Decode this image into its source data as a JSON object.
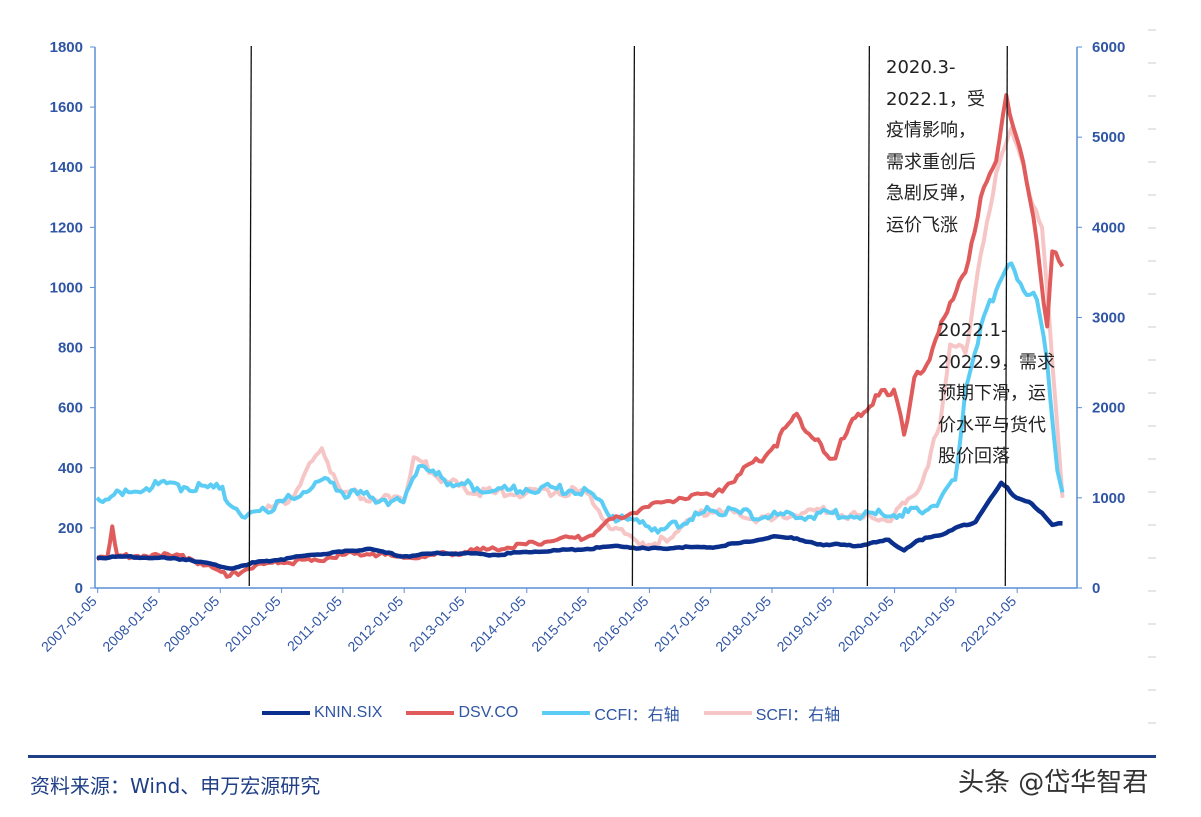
{
  "chart_data": {
    "type": "line",
    "xlabel": "",
    "ylabel": "",
    "x_ticks": [
      "2007-01-05",
      "2008-01-05",
      "2009-01-05",
      "2010-01-05",
      "2011-01-05",
      "2012-01-05",
      "2013-01-05",
      "2014-01-05",
      "2015-01-05",
      "2016-01-05",
      "2017-01-05",
      "2018-01-05",
      "2019-01-05",
      "2020-01-05",
      "2021-01-05",
      "2022-01-05"
    ],
    "y_left": {
      "ylim": [
        0,
        1800
      ],
      "ticks": [
        "0",
        "200",
        "400",
        "600",
        "800",
        "1000",
        "1200",
        "1400",
        "1600",
        "1800"
      ]
    },
    "y_right": {
      "ylim": [
        0,
        6000
      ],
      "ticks": [
        "0",
        "1000",
        "2000",
        "3000",
        "4000",
        "5000",
        "6000"
      ]
    },
    "grid": false,
    "legend": "bottom",
    "series": [
      {
        "name": "KNIN.SIX",
        "axis": "left",
        "color": "#0a2f8c",
        "points": [
          [
            "2007-01",
            100
          ],
          [
            "2007-07",
            105
          ],
          [
            "2008-01",
            100
          ],
          [
            "2008-07",
            95
          ],
          [
            "2009-03",
            65
          ],
          [
            "2009-08",
            85
          ],
          [
            "2010-01",
            95
          ],
          [
            "2010-07",
            110
          ],
          [
            "2011-01",
            120
          ],
          [
            "2011-06",
            130
          ],
          [
            "2012-01",
            105
          ],
          [
            "2012-07",
            115
          ],
          [
            "2013-01",
            115
          ],
          [
            "2013-07",
            110
          ],
          [
            "2014-01",
            120
          ],
          [
            "2014-07",
            125
          ],
          [
            "2015-01",
            130
          ],
          [
            "2015-07",
            140
          ],
          [
            "2016-01",
            130
          ],
          [
            "2016-07",
            135
          ],
          [
            "2017-01",
            135
          ],
          [
            "2017-07",
            150
          ],
          [
            "2018-01",
            170
          ],
          [
            "2018-06",
            165
          ],
          [
            "2018-10",
            145
          ],
          [
            "2019-01",
            145
          ],
          [
            "2019-06",
            140
          ],
          [
            "2019-12",
            160
          ],
          [
            "2020-03",
            125
          ],
          [
            "2020-06",
            160
          ],
          [
            "2020-10",
            175
          ],
          [
            "2021-01",
            200
          ],
          [
            "2021-05",
            220
          ],
          [
            "2021-08",
            300
          ],
          [
            "2021-10",
            350
          ],
          [
            "2022-01",
            300
          ],
          [
            "2022-04",
            280
          ],
          [
            "2022-06",
            250
          ],
          [
            "2022-08",
            210
          ],
          [
            "2022-10",
            215
          ]
        ]
      },
      {
        "name": "DSV.CO",
        "axis": "left",
        "color": "#e05c5c",
        "points": [
          [
            "2007-01",
            95
          ],
          [
            "2007-03",
            100
          ],
          [
            "2007-04",
            205
          ],
          [
            "2007-05",
            105
          ],
          [
            "2008-01",
            110
          ],
          [
            "2008-07",
            100
          ],
          [
            "2009-03",
            40
          ],
          [
            "2009-08",
            75
          ],
          [
            "2010-01",
            85
          ],
          [
            "2010-07",
            90
          ],
          [
            "2011-01",
            110
          ],
          [
            "2011-07",
            115
          ],
          [
            "2012-01",
            100
          ],
          [
            "2012-07",
            110
          ],
          [
            "2013-01",
            120
          ],
          [
            "2013-07",
            130
          ],
          [
            "2014-01",
            145
          ],
          [
            "2014-07",
            160
          ],
          [
            "2015-01",
            170
          ],
          [
            "2015-06",
            230
          ],
          [
            "2016-01",
            270
          ],
          [
            "2016-07",
            300
          ],
          [
            "2017-01",
            310
          ],
          [
            "2017-07",
            380
          ],
          [
            "2018-01",
            460
          ],
          [
            "2018-06",
            580
          ],
          [
            "2018-09",
            500
          ],
          [
            "2019-01",
            430
          ],
          [
            "2019-06",
            580
          ],
          [
            "2019-10",
            640
          ],
          [
            "2020-01",
            660
          ],
          [
            "2020-03",
            510
          ],
          [
            "2020-05",
            700
          ],
          [
            "2020-08",
            760
          ],
          [
            "2020-12",
            950
          ],
          [
            "2021-03",
            1050
          ],
          [
            "2021-06",
            1300
          ],
          [
            "2021-09",
            1420
          ],
          [
            "2021-11",
            1640
          ],
          [
            "2022-01",
            1500
          ],
          [
            "2022-03",
            1350
          ],
          [
            "2022-05",
            1150
          ],
          [
            "2022-07",
            870
          ],
          [
            "2022-08",
            1120
          ],
          [
            "2022-10",
            1070
          ]
        ]
      },
      {
        "name": "CCFI：右轴",
        "axis": "right",
        "color": "#5bcdf5",
        "points": [
          [
            "2007-01",
            1000
          ],
          [
            "2007-06",
            1030
          ],
          [
            "2008-01",
            1150
          ],
          [
            "2008-06",
            1120
          ],
          [
            "2009-01",
            1100
          ],
          [
            "2009-06",
            780
          ],
          [
            "2009-10",
            860
          ],
          [
            "2010-03",
            1000
          ],
          [
            "2010-09",
            1200
          ],
          [
            "2011-01",
            1060
          ],
          [
            "2011-07",
            1000
          ],
          [
            "2012-01",
            950
          ],
          [
            "2012-04",
            1350
          ],
          [
            "2012-09",
            1200
          ],
          [
            "2013-01",
            1150
          ],
          [
            "2013-07",
            1080
          ],
          [
            "2014-01",
            1100
          ],
          [
            "2014-07",
            1100
          ],
          [
            "2015-01",
            1080
          ],
          [
            "2015-06",
            800
          ],
          [
            "2016-01",
            680
          ],
          [
            "2016-04",
            650
          ],
          [
            "2016-09",
            760
          ],
          [
            "2017-01",
            860
          ],
          [
            "2017-07",
            830
          ],
          [
            "2018-01",
            800
          ],
          [
            "2018-07",
            780
          ],
          [
            "2019-01",
            830
          ],
          [
            "2019-07",
            810
          ],
          [
            "2020-01",
            810
          ],
          [
            "2020-06",
            850
          ],
          [
            "2020-10",
            980
          ],
          [
            "2021-01",
            1200
          ],
          [
            "2021-03",
            2200
          ],
          [
            "2021-06",
            2900
          ],
          [
            "2021-09",
            3300
          ],
          [
            "2021-12",
            3600
          ],
          [
            "2022-03",
            3250
          ],
          [
            "2022-05",
            3200
          ],
          [
            "2022-07",
            2500
          ],
          [
            "2022-09",
            1300
          ],
          [
            "2022-10",
            1060
          ]
        ]
      },
      {
        "name": "SCFI：右轴",
        "axis": "right",
        "color": "#f6c6c6",
        "points": [
          [
            "2009-10",
            860
          ],
          [
            "2010-03",
            1000
          ],
          [
            "2010-09",
            1550
          ],
          [
            "2011-01",
            1060
          ],
          [
            "2011-07",
            1000
          ],
          [
            "2012-01",
            950
          ],
          [
            "2012-03",
            1450
          ],
          [
            "2012-09",
            1200
          ],
          [
            "2013-01",
            1100
          ],
          [
            "2013-07",
            1050
          ],
          [
            "2014-01",
            1050
          ],
          [
            "2014-07",
            1080
          ],
          [
            "2015-01",
            1050
          ],
          [
            "2015-06",
            650
          ],
          [
            "2016-01",
            480
          ],
          [
            "2016-04",
            550
          ],
          [
            "2016-09",
            760
          ],
          [
            "2017-01",
            850
          ],
          [
            "2017-07",
            800
          ],
          [
            "2018-01",
            750
          ],
          [
            "2018-07",
            830
          ],
          [
            "2019-01",
            850
          ],
          [
            "2019-07",
            780
          ],
          [
            "2020-01",
            800
          ],
          [
            "2020-06",
            1100
          ],
          [
            "2020-10",
            1800
          ],
          [
            "2020-12",
            2700
          ],
          [
            "2021-03",
            2600
          ],
          [
            "2021-06",
            3700
          ],
          [
            "2021-09",
            4600
          ],
          [
            "2021-12",
            5100
          ],
          [
            "2022-03",
            4500
          ],
          [
            "2022-06",
            4000
          ],
          [
            "2022-08",
            2500
          ],
          [
            "2022-10",
            1000
          ]
        ]
      }
    ],
    "event_lines": [
      "2009-07",
      "2015-10",
      "2019-08",
      "2021-11"
    ],
    "annotations": [
      "2020.3-\n2022.1，受\n疫情影响，\n需求重创后\n急剧反弹，\n运价飞涨",
      "2022.1-\n2022.9，需求\n预期下滑，运\n价水平与货代\n股价回落"
    ]
  },
  "footer": {
    "source": "资料来源：Wind、申万宏源研究",
    "watermark": "头条 @岱华智君"
  }
}
